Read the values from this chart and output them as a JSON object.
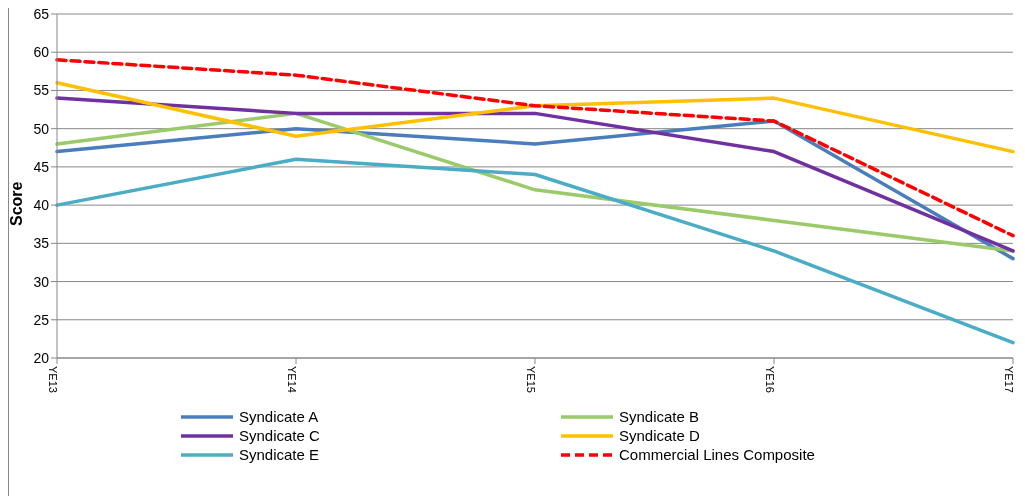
{
  "chart_data": {
    "type": "line",
    "ylabel": "Score",
    "categories": [
      "YE13",
      "YE14",
      "YE15",
      "YE16",
      "YE17"
    ],
    "series": [
      {
        "name": "Syndicate A",
        "color": "#4a7ebb",
        "values": [
          47,
          50,
          48,
          51,
          33
        ]
      },
      {
        "name": "Syndicate B",
        "color": "#9bca6a",
        "values": [
          48,
          52,
          42,
          38,
          34
        ]
      },
      {
        "name": "Syndicate C",
        "color": "#7030a0",
        "values": [
          54,
          52,
          52,
          47,
          34
        ]
      },
      {
        "name": "Syndicate D",
        "color": "#ffc000",
        "values": [
          56,
          49,
          53,
          54,
          47
        ]
      },
      {
        "name": "Syndicate E",
        "color": "#4bacc6",
        "values": [
          40,
          46,
          44,
          34,
          22
        ]
      },
      {
        "name": "Commercial Lines Composite",
        "color": "#ff0000",
        "values": [
          59,
          57,
          53,
          51,
          36
        ],
        "line_style": "dashed"
      }
    ],
    "ylim": [
      20,
      65
    ],
    "yticks": [
      20,
      25,
      30,
      35,
      40,
      45,
      50,
      55,
      60,
      65
    ],
    "grid": "y",
    "legend": "bottom",
    "marker": "none"
  }
}
